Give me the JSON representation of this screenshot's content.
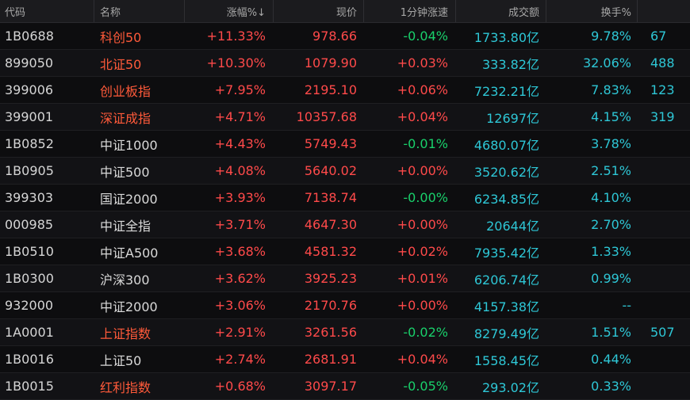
{
  "header": {
    "code": "代码",
    "name": "名称",
    "change_pct": "涨幅%↓",
    "price": "现价",
    "speed_1m": "1分钟涨速",
    "volume": "成交额",
    "turnover": "换手%"
  },
  "rows": [
    {
      "code": "1B0688",
      "name": "科创50",
      "name_color": "red",
      "change": "+11.33%",
      "price": "978.66",
      "speed": "-0.04%",
      "speed_dir": "down",
      "volume": "1733.80亿",
      "turnover": "9.78%",
      "extra": "67"
    },
    {
      "code": "899050",
      "name": "北证50",
      "name_color": "red",
      "change": "+10.30%",
      "price": "1079.90",
      "speed": "+0.03%",
      "speed_dir": "up",
      "volume": "333.82亿",
      "turnover": "32.06%",
      "extra": "488"
    },
    {
      "code": "399006",
      "name": "创业板指",
      "name_color": "red",
      "change": "+7.95%",
      "price": "2195.10",
      "speed": "+0.06%",
      "speed_dir": "up",
      "volume": "7232.21亿",
      "turnover": "7.83%",
      "extra": "123"
    },
    {
      "code": "399001",
      "name": "深证成指",
      "name_color": "red",
      "change": "+4.71%",
      "price": "10357.68",
      "speed": "+0.04%",
      "speed_dir": "up",
      "volume": "12697亿",
      "turnover": "4.15%",
      "extra": "319"
    },
    {
      "code": "1B0852",
      "name": "中证1000",
      "name_color": "white",
      "change": "+4.43%",
      "price": "5749.43",
      "speed": "-0.01%",
      "speed_dir": "down",
      "volume": "4680.07亿",
      "turnover": "3.78%",
      "extra": ""
    },
    {
      "code": "1B0905",
      "name": "中证500",
      "name_color": "white",
      "change": "+4.08%",
      "price": "5640.02",
      "speed": "+0.00%",
      "speed_dir": "up",
      "volume": "3520.62亿",
      "turnover": "2.51%",
      "extra": ""
    },
    {
      "code": "399303",
      "name": "国证2000",
      "name_color": "white",
      "change": "+3.93%",
      "price": "7138.74",
      "speed": "-0.00%",
      "speed_dir": "down",
      "volume": "6234.85亿",
      "turnover": "4.10%",
      "extra": ""
    },
    {
      "code": "000985",
      "name": "中证全指",
      "name_color": "white",
      "change": "+3.71%",
      "price": "4647.30",
      "speed": "+0.00%",
      "speed_dir": "up",
      "volume": "20644亿",
      "turnover": "2.70%",
      "extra": ""
    },
    {
      "code": "1B0510",
      "name": "中证A500",
      "name_color": "white",
      "change": "+3.68%",
      "price": "4581.32",
      "speed": "+0.02%",
      "speed_dir": "up",
      "volume": "7935.42亿",
      "turnover": "1.33%",
      "extra": ""
    },
    {
      "code": "1B0300",
      "name": "沪深300",
      "name_color": "white",
      "change": "+3.62%",
      "price": "3925.23",
      "speed": "+0.01%",
      "speed_dir": "up",
      "volume": "6206.74亿",
      "turnover": "0.99%",
      "extra": ""
    },
    {
      "code": "932000",
      "name": "中证2000",
      "name_color": "white",
      "change": "+3.06%",
      "price": "2170.76",
      "speed": "+0.00%",
      "speed_dir": "up",
      "volume": "4157.38亿",
      "turnover": "--",
      "extra": ""
    },
    {
      "code": "1A0001",
      "name": "上证指数",
      "name_color": "red",
      "change": "+2.91%",
      "price": "3261.56",
      "speed": "-0.02%",
      "speed_dir": "down",
      "volume": "8279.49亿",
      "turnover": "1.51%",
      "extra": "507"
    },
    {
      "code": "1B0016",
      "name": "上证50",
      "name_color": "white",
      "change": "+2.74%",
      "price": "2681.91",
      "speed": "+0.04%",
      "speed_dir": "up",
      "volume": "1558.45亿",
      "turnover": "0.44%",
      "extra": ""
    },
    {
      "code": "1B0015",
      "name": "红利指数",
      "name_color": "red",
      "change": "+0.68%",
      "price": "3097.17",
      "speed": "-0.05%",
      "speed_dir": "down",
      "volume": "293.02亿",
      "turnover": "0.33%",
      "extra": ""
    }
  ]
}
